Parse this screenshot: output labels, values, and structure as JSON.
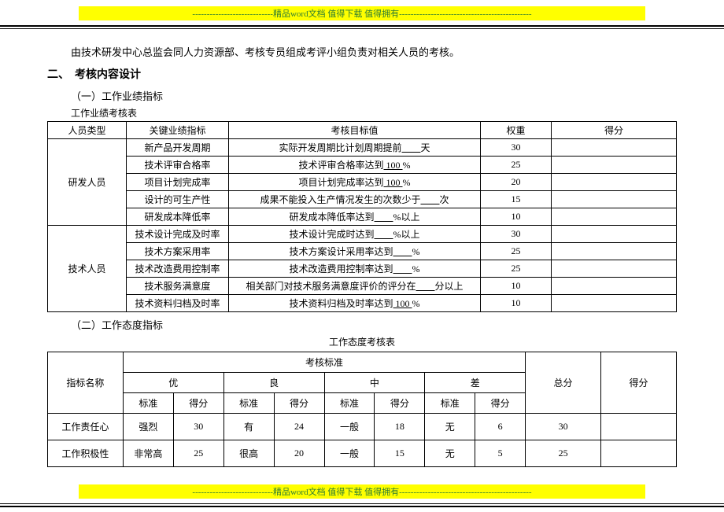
{
  "header_text": "----------------------------精品word文档 值得下载 值得拥有----------------------------------------------",
  "footer_text": "----------------------------精品word文档 值得下载 值得拥有----------------------------------------------",
  "intro_para": "由技术研发中心总监会同人力资源部、考核专员组成考评小组负责对相关人员的考核。",
  "section2_title": "二、　考核内容设计",
  "sub1_title": "（一）工作业绩指标",
  "table1_caption": "工作业绩考核表",
  "table1": {
    "headers": {
      "c1": "人员类型",
      "c2": "关键业绩指标",
      "c3": "考核目标值",
      "c4": "权重",
      "c5": "得分"
    },
    "groups": [
      {
        "category": "研发人员",
        "rows": [
          {
            "key": "新产品开发周期",
            "target_pre": "实际开发周期比计划周期提前",
            "target_u": "　　",
            "target_post": "天",
            "weight": "30"
          },
          {
            "key": "技术评审合格率",
            "target_pre": "技术评审合格率达到",
            "target_u": " 100 ",
            "target_post": "%",
            "weight": "25"
          },
          {
            "key": "项目计划完成率",
            "target_pre": "项目计划完成率达到",
            "target_u": " 100 ",
            "target_post": "%",
            "weight": "20"
          },
          {
            "key": "设计的可生产性",
            "target_pre": "成果不能投入生产情况发生的次数少于",
            "target_u": "　　",
            "target_post": "次",
            "weight": "15"
          },
          {
            "key": "研发成本降低率",
            "target_pre": "研发成本降低率达到",
            "target_u": "　　",
            "target_post": "%以上",
            "weight": "10"
          }
        ]
      },
      {
        "category": "技术人员",
        "rows": [
          {
            "key": "技术设计完成及时率",
            "target_pre": "技术设计完成时达到",
            "target_u": "　　",
            "target_post": "%以上",
            "weight": "30"
          },
          {
            "key": "技术方案采用率",
            "target_pre": "技术方案设计采用率达到",
            "target_u": "　　",
            "target_post": "%",
            "weight": "25"
          },
          {
            "key": "技术改造费用控制率",
            "target_pre": "技术改造费用控制率达到",
            "target_u": "　　",
            "target_post": "%",
            "weight": "25"
          },
          {
            "key": "技术服务满意度",
            "target_pre": "相关部门对技术服务满意度评价的评分在",
            "target_u": "　　",
            "target_post": "分以上",
            "weight": "10"
          },
          {
            "key": "技术资料归档及时率",
            "target_pre": "技术资料归档及时率达到",
            "target_u": " 100 ",
            "target_post": "%",
            "weight": "10"
          }
        ]
      }
    ]
  },
  "sub2_title": "（二）工作态度指标",
  "table2_caption": "工作态度考核表",
  "table2": {
    "top_header": "考核标准",
    "col_name": "指标名称",
    "levels": [
      "优",
      "良",
      "中",
      "差"
    ],
    "std_label": "标准",
    "score_label": "得分",
    "total_label": "总分",
    "final_label": "得分",
    "rows": [
      {
        "name": "工作责任心",
        "cells": [
          [
            "强烈",
            "30"
          ],
          [
            "有",
            "24"
          ],
          [
            "一般",
            "18"
          ],
          [
            "无",
            "6"
          ]
        ],
        "total": "30",
        "final": ""
      },
      {
        "name": "工作积极性",
        "cells": [
          [
            "非常高",
            "25"
          ],
          [
            "很高",
            "20"
          ],
          [
            "一般",
            "15"
          ],
          [
            "无",
            "5"
          ]
        ],
        "total": "25",
        "final": ""
      }
    ]
  }
}
